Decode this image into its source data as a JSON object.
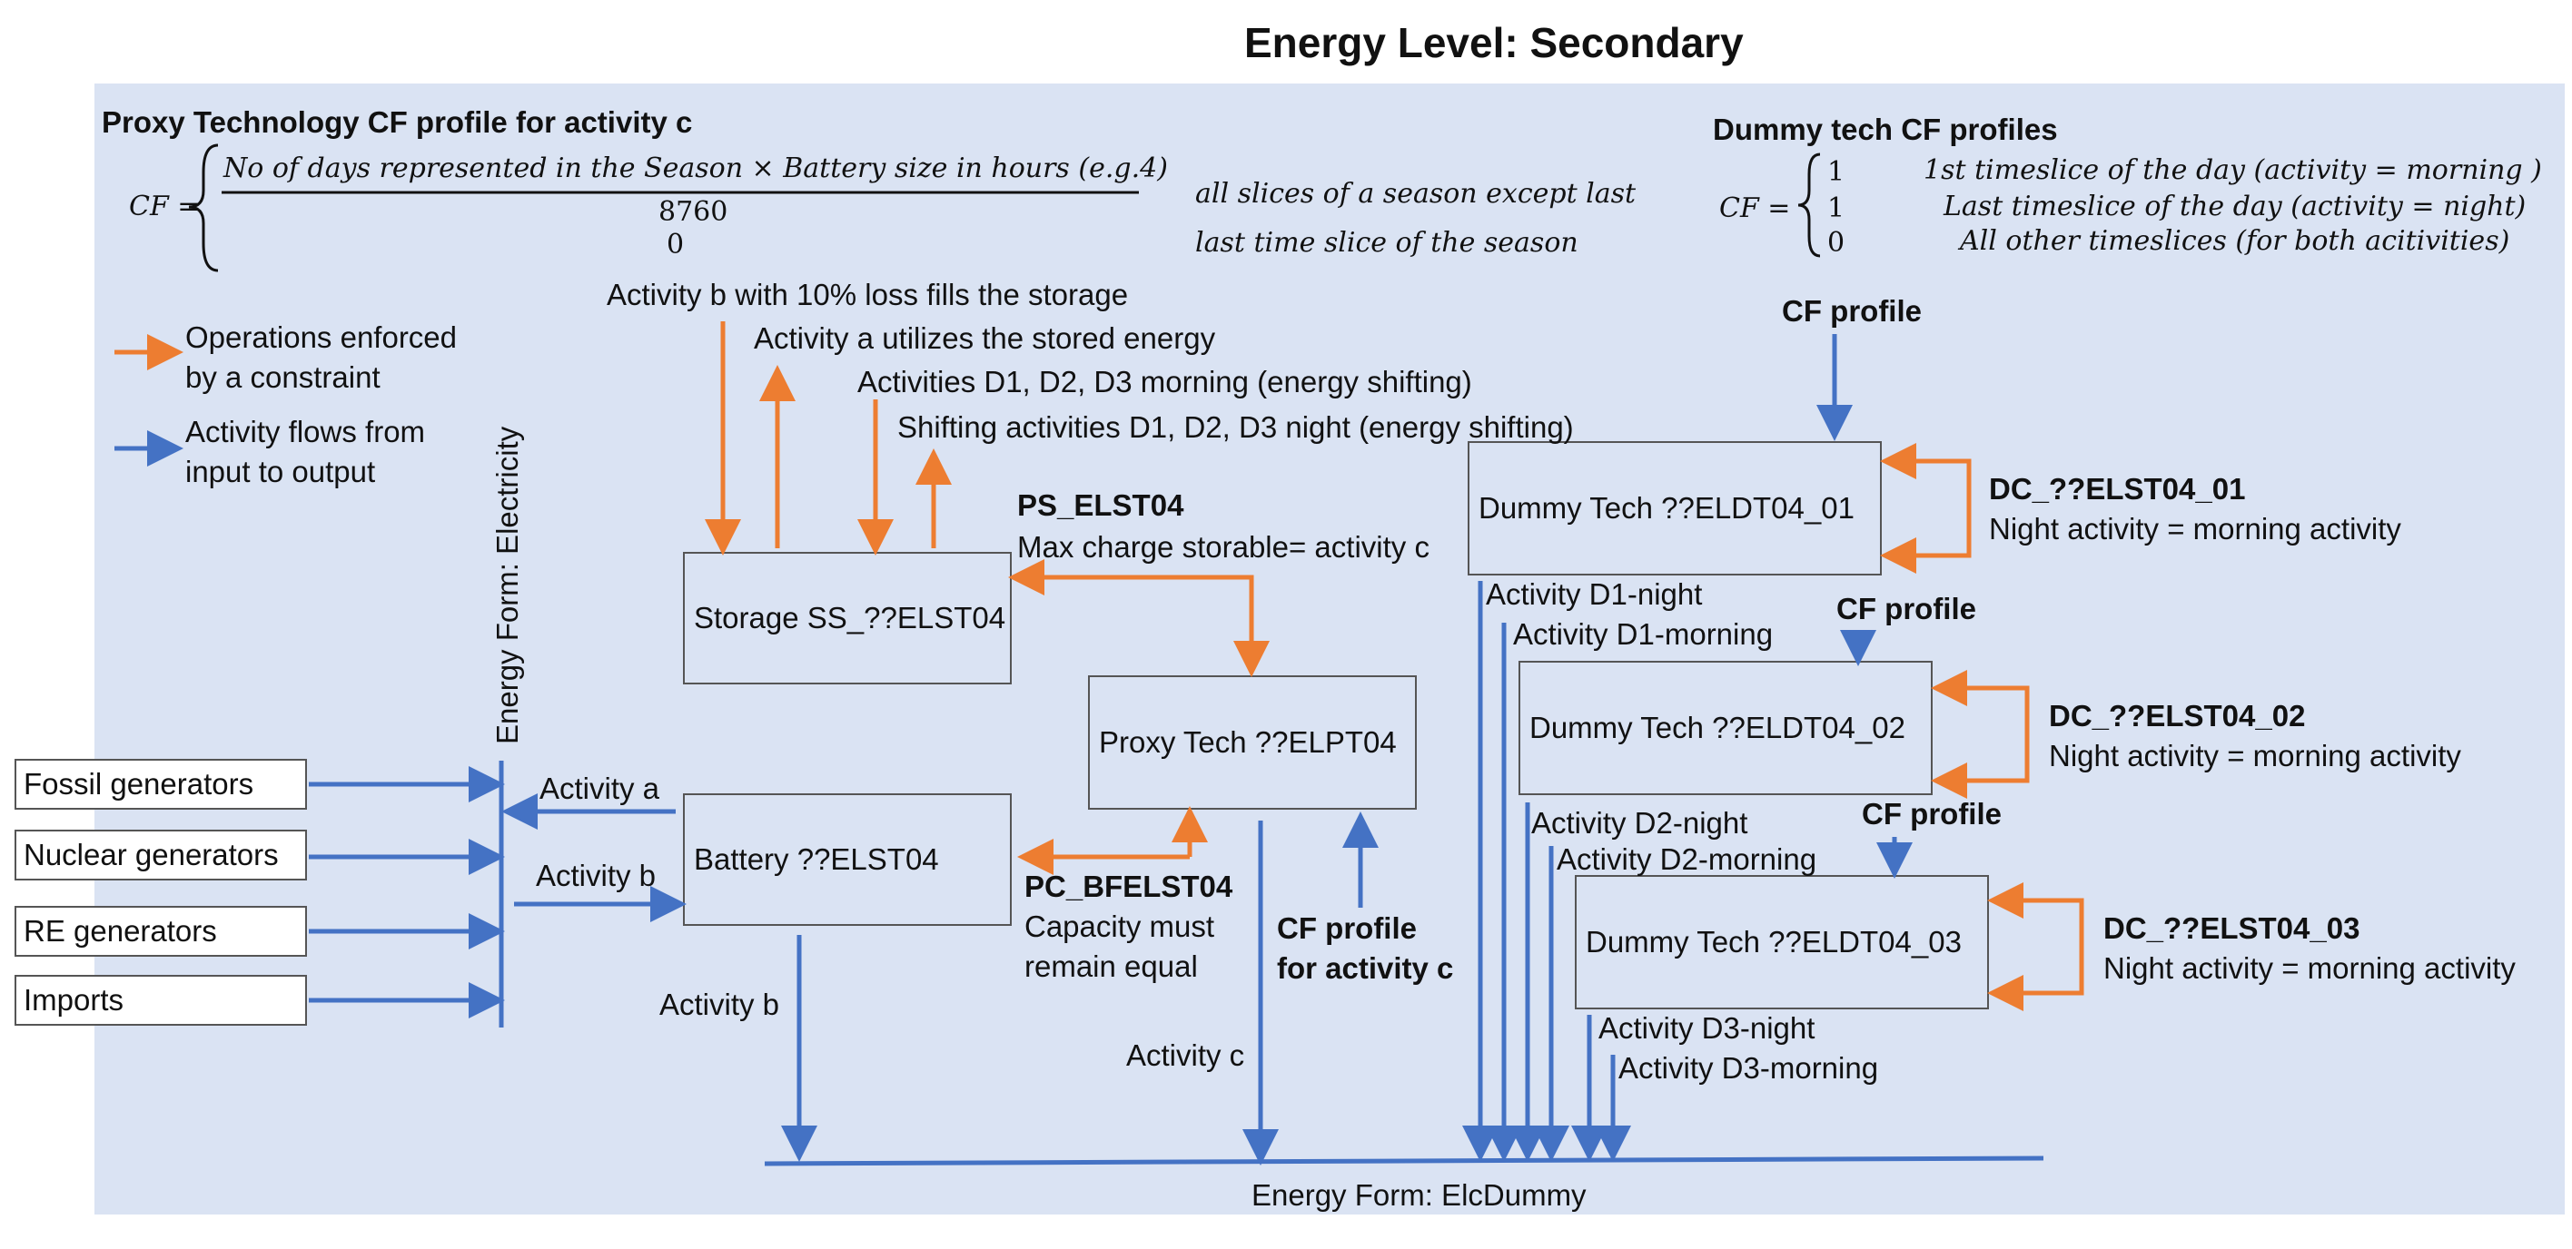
{
  "title": "Energy Level: Secondary",
  "proxy_cf": {
    "heading": "Proxy Technology CF profile for activity c",
    "cf_label": "CF =",
    "numerator": "No of days represented in the Season × Battery size in hours (e.g.4)",
    "denominator": "8760",
    "zero": "0",
    "cond1": "all slices of a season except last",
    "cond2": "last time slice of the season"
  },
  "dummy_cf": {
    "heading": "Dummy tech CF profiles",
    "cf_label": "CF =",
    "v1": "1",
    "v2": "1",
    "v3": "0",
    "c1": "1st timeslice of the day (activity = morning )",
    "c2": "Last timeslice of the day (activity = night)",
    "c3": "All other timeslices (for both acitivities)"
  },
  "legend": {
    "orange": "Operations enforced by a constraint",
    "blue": "Activity flows from input to output"
  },
  "inputs": [
    "Fossil generators",
    "Nuclear generators",
    "RE generators",
    "Imports"
  ],
  "energy_form_elec": "Energy Form: Electricity",
  "energy_form_dummy": "Energy Form: ElcDummy",
  "boxes": {
    "storage": "Storage SS_??ELST04",
    "battery": "Battery ??ELST04",
    "proxy": "Proxy Tech ??ELPT04",
    "dummy1": "Dummy Tech ??ELDT04_01",
    "dummy2": "Dummy Tech ??ELDT04_02",
    "dummy3": "Dummy Tech ??ELDT04_03"
  },
  "labels": {
    "act_b_fill": "Activity b with 10% loss fills the storage",
    "act_a_util": "Activity a utilizes the stored energy",
    "act_morning": "Activities D1, D2, D3 morning (energy shifting)",
    "act_night": "Shifting activities D1, D2, D3 night (energy shifting)",
    "ps_name": "PS_ELST04",
    "ps_desc": "Max charge storable= activity c",
    "pc_name": "PC_BFELST04",
    "pc_desc1": "Capacity must",
    "pc_desc2": "remain equal",
    "activity_a": "Activity a",
    "activity_b_in": "Activity b",
    "activity_b_out": "Activity b",
    "activity_c": "Activity c",
    "cf_activity_c1": "CF profile",
    "cf_activity_c2": "for activity c",
    "cf_profile_1": "CF profile",
    "cf_profile_2": "CF profile",
    "cf_profile_3": "CF profile",
    "d1_night": "Activity D1-night",
    "d1_morning": "Activity D1-morning",
    "d2_night": "Activity D2-night",
    "d2_morning": "Activity D2-morning",
    "d3_night": "Activity D3-night",
    "d3_morning": "Activity D3-morning",
    "dc1_name": "DC_??ELST04_01",
    "dc2_name": "DC_??ELST04_02",
    "dc3_name": "DC_??ELST04_03",
    "dc_desc1": "Night activity = morning activity",
    "dc_desc2": "Night activity = morning activity",
    "dc_desc3": "Night activity = morning activity"
  },
  "colors": {
    "orange": "#ed7d31",
    "blue": "#4472c4",
    "panel": "#dae3f3"
  }
}
